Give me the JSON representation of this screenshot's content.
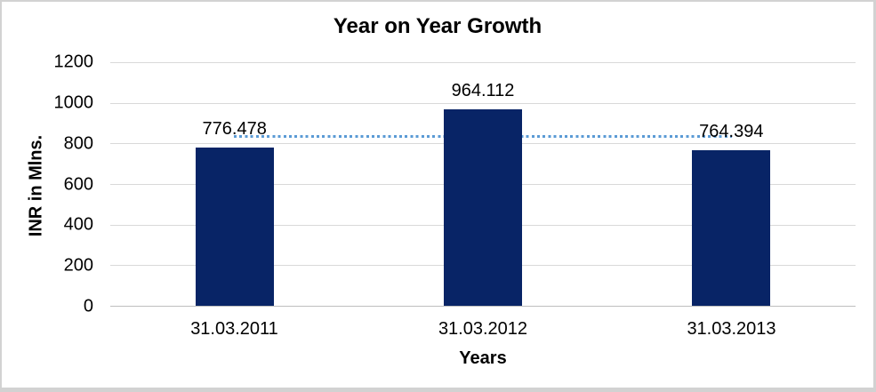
{
  "chart_data": {
    "type": "bar",
    "title": "Year on Year Growth",
    "xlabel": "Years",
    "ylabel": "INR in Mlns.",
    "categories": [
      "31.03.2011",
      "31.03.2012",
      "31.03.2013"
    ],
    "values": [
      776.478,
      964.112,
      764.394
    ],
    "value_labels": [
      "776.478",
      "964.112",
      "764.394"
    ],
    "ylim": [
      0,
      1200
    ],
    "yticks": [
      0,
      200,
      400,
      600,
      800,
      1000,
      1200
    ],
    "ytick_labels": [
      "0",
      "200",
      "400",
      "600",
      "800",
      "1000",
      "1200"
    ],
    "grid": true,
    "legend_position": "none",
    "colors": {
      "bar": "#082466",
      "trendline": "#5b9bd5",
      "gridline": "#d9d9d9",
      "axis_line": "#bfbfbf",
      "text": "#000000"
    },
    "trendline": {
      "style": "dotted",
      "approx_value": 835,
      "span": "from first bar center to last bar center"
    }
  }
}
